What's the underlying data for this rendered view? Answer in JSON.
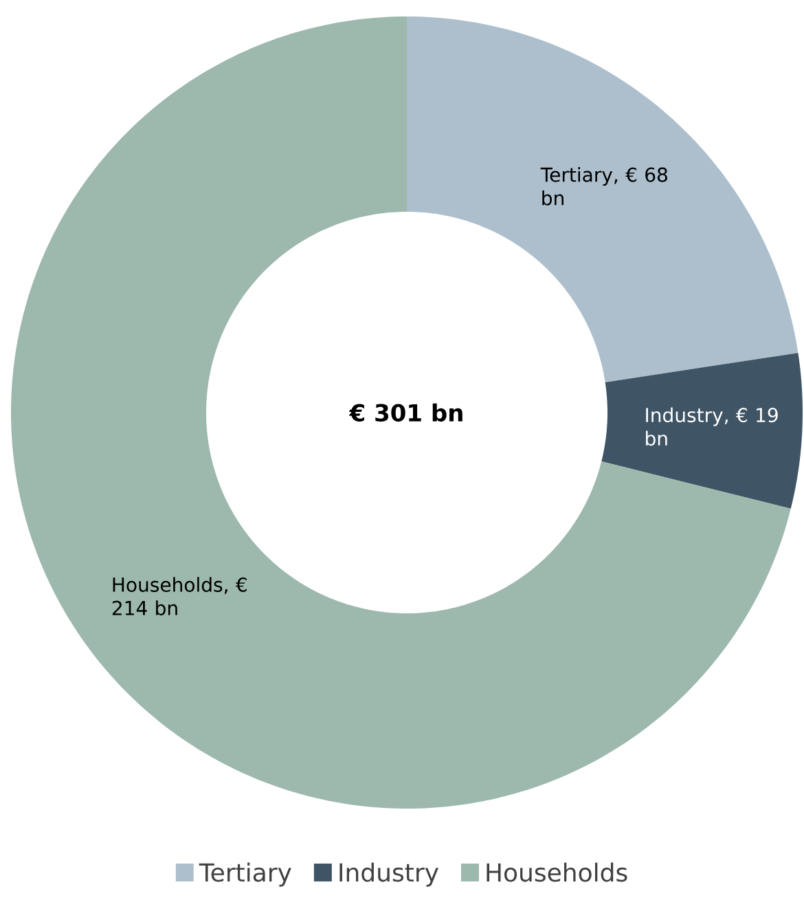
{
  "chart_data": {
    "type": "donut",
    "categories": [
      "Tertiary",
      "Industry",
      "Households"
    ],
    "values": [
      68,
      19,
      214
    ],
    "colors": [
      "#adbfcc",
      "#3f5566",
      "#9db8ad"
    ],
    "value_labels": [
      "Tertiary, € 68 bn",
      "Industry, € 19 bn",
      "Households, € 214 bn"
    ],
    "annotations": [
      "€ 301 bn"
    ],
    "legend": "bottom"
  }
}
